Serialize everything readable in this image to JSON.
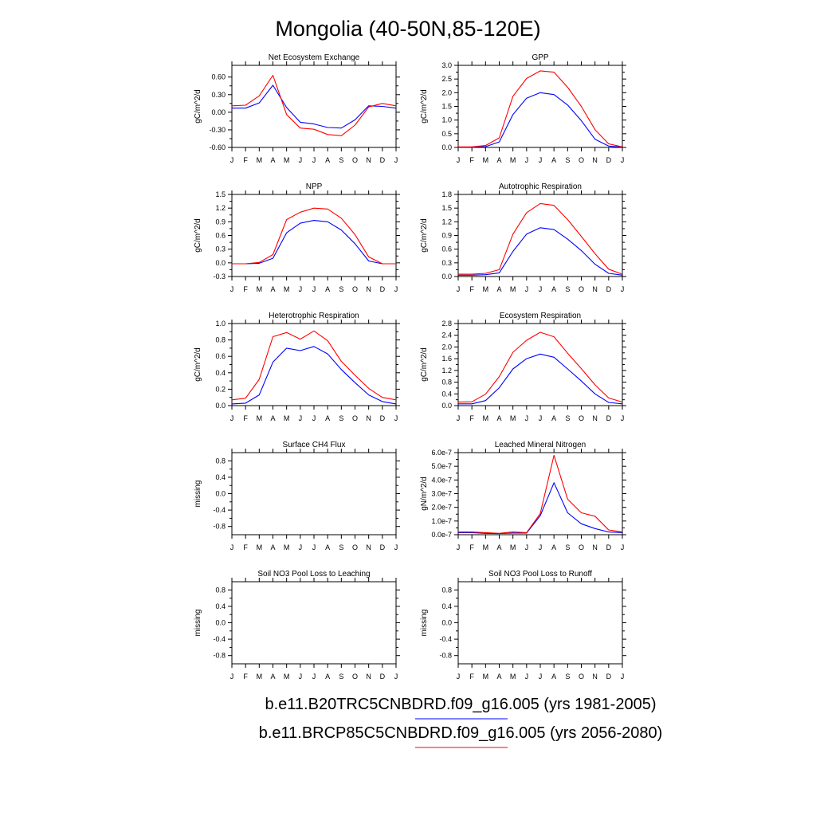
{
  "title": "Mongolia (40-50N,85-120E)",
  "colors": {
    "historical": "#0000ff",
    "future": "#ff0000"
  },
  "legend": [
    {
      "label": "b.e11.B20TRC5CNBDRD.f09_g16.005 (yrs 1981-2005)",
      "color": "#0000ff"
    },
    {
      "label": "b.e11.BRCP85C5CNBDRD.f09_g16.005 (yrs 2056-2080)",
      "color": "#ff0000"
    }
  ],
  "chart_data": [
    {
      "type": "line",
      "title": "Net Ecosystem Exchange",
      "ylabel": "gC/m^2/d",
      "categories": [
        "J",
        "F",
        "M",
        "A",
        "M",
        "J",
        "J",
        "A",
        "S",
        "O",
        "N",
        "D",
        "J"
      ],
      "ylim": [
        -0.6,
        0.8
      ],
      "yticks": [
        -0.6,
        -0.3,
        0.0,
        0.3,
        0.6
      ],
      "ytick_labels": [
        "-0.60",
        "-0.30",
        "0.00",
        "0.30",
        "0.60"
      ],
      "series": [
        {
          "name": "b.e11.B20TRC5CNBDRD.f09_g16.005 (yrs 1981-2005)",
          "color": "#0000ff",
          "values": [
            0.07,
            0.07,
            0.16,
            0.46,
            0.08,
            -0.17,
            -0.2,
            -0.26,
            -0.27,
            -0.13,
            0.11,
            0.1,
            0.07
          ]
        },
        {
          "name": "b.e11.BRCP85C5CNBDRD.f09_g16.005 (yrs 2056-2080)",
          "color": "#ff0000",
          "values": [
            0.11,
            0.12,
            0.28,
            0.63,
            -0.04,
            -0.27,
            -0.29,
            -0.38,
            -0.4,
            -0.22,
            0.09,
            0.15,
            0.11
          ]
        }
      ]
    },
    {
      "type": "line",
      "title": "GPP",
      "ylabel": "gC/m^2/d",
      "categories": [
        "J",
        "F",
        "M",
        "A",
        "M",
        "J",
        "J",
        "A",
        "S",
        "O",
        "N",
        "D",
        "J"
      ],
      "ylim": [
        0,
        3.0
      ],
      "yticks": [
        0,
        0.5,
        1.0,
        1.5,
        2.0,
        2.5,
        3.0
      ],
      "ytick_labels": [
        "0.0",
        "0.5",
        "1.0",
        "1.5",
        "2.0",
        "2.5",
        "3.0"
      ],
      "series": [
        {
          "name": "b.e11.B20TRC5CNBDRD.f09_g16.005 (yrs 1981-2005)",
          "color": "#0000ff",
          "values": [
            0.01,
            0.01,
            0.03,
            0.2,
            1.2,
            1.8,
            2.0,
            1.93,
            1.55,
            0.98,
            0.3,
            0.05,
            0.01
          ]
        },
        {
          "name": "b.e11.BRCP85C5CNBDRD.f09_g16.005 (yrs 2056-2080)",
          "color": "#ff0000",
          "values": [
            0.02,
            0.02,
            0.07,
            0.35,
            1.87,
            2.52,
            2.8,
            2.75,
            2.2,
            1.5,
            0.65,
            0.13,
            0.02
          ]
        }
      ]
    },
    {
      "type": "line",
      "title": "NPP",
      "ylabel": "gC/m^2/d",
      "categories": [
        "J",
        "F",
        "M",
        "A",
        "M",
        "J",
        "J",
        "A",
        "S",
        "O",
        "N",
        "D",
        "J"
      ],
      "ylim": [
        -0.3,
        1.5
      ],
      "yticks": [
        -0.3,
        0.0,
        0.3,
        0.6,
        0.9,
        1.2,
        1.5
      ],
      "ytick_labels": [
        "-0.3",
        "0.0",
        "0.3",
        "0.6",
        "0.9",
        "1.2",
        "1.5"
      ],
      "series": [
        {
          "name": "b.e11.B20TRC5CNBDRD.f09_g16.005 (yrs 1981-2005)",
          "color": "#0000ff",
          "values": [
            -0.02,
            -0.02,
            -0.01,
            0.1,
            0.66,
            0.87,
            0.93,
            0.9,
            0.72,
            0.42,
            0.04,
            -0.02,
            -0.02
          ]
        },
        {
          "name": "b.e11.BRCP85C5CNBDRD.f09_g16.005 (yrs 2056-2080)",
          "color": "#ff0000",
          "values": [
            -0.02,
            -0.02,
            0.01,
            0.18,
            0.95,
            1.11,
            1.2,
            1.18,
            0.98,
            0.62,
            0.13,
            -0.02,
            -0.02
          ]
        }
      ]
    },
    {
      "type": "line",
      "title": "Autotrophic Respiration",
      "ylabel": "gC/m^2/d",
      "categories": [
        "J",
        "F",
        "M",
        "A",
        "M",
        "J",
        "J",
        "A",
        "S",
        "O",
        "N",
        "D",
        "J"
      ],
      "ylim": [
        0,
        1.8
      ],
      "yticks": [
        0,
        0.3,
        0.6,
        0.9,
        1.2,
        1.5,
        1.8
      ],
      "ytick_labels": [
        "0.0",
        "0.3",
        "0.6",
        "0.9",
        "1.2",
        "1.5",
        "1.8"
      ],
      "series": [
        {
          "name": "b.e11.B20TRC5CNBDRD.f09_g16.005 (yrs 1981-2005)",
          "color": "#0000ff",
          "values": [
            0.03,
            0.03,
            0.04,
            0.08,
            0.55,
            0.93,
            1.07,
            1.03,
            0.82,
            0.57,
            0.27,
            0.07,
            0.03
          ]
        },
        {
          "name": "b.e11.BRCP85C5CNBDRD.f09_g16.005 (yrs 2056-2080)",
          "color": "#ff0000",
          "values": [
            0.05,
            0.05,
            0.07,
            0.15,
            0.93,
            1.4,
            1.6,
            1.56,
            1.25,
            0.88,
            0.5,
            0.16,
            0.05
          ]
        }
      ]
    },
    {
      "type": "line",
      "title": "Heterotrophic Respiration",
      "ylabel": "gC/m^2/d",
      "categories": [
        "J",
        "F",
        "M",
        "A",
        "M",
        "J",
        "J",
        "A",
        "S",
        "O",
        "N",
        "D",
        "J"
      ],
      "ylim": [
        0,
        1.0
      ],
      "yticks": [
        0,
        0.2,
        0.4,
        0.6,
        0.8,
        1.0
      ],
      "ytick_labels": [
        "0.0",
        "0.2",
        "0.4",
        "0.6",
        "0.8",
        "1.0"
      ],
      "series": [
        {
          "name": "b.e11.B20TRC5CNBDRD.f09_g16.005 (yrs 1981-2005)",
          "color": "#0000ff",
          "values": [
            0.02,
            0.03,
            0.13,
            0.53,
            0.7,
            0.67,
            0.72,
            0.63,
            0.44,
            0.28,
            0.13,
            0.05,
            0.02
          ]
        },
        {
          "name": "b.e11.BRCP85C5CNBDRD.f09_g16.005 (yrs 2056-2080)",
          "color": "#ff0000",
          "values": [
            0.07,
            0.09,
            0.32,
            0.84,
            0.89,
            0.81,
            0.91,
            0.79,
            0.54,
            0.37,
            0.21,
            0.1,
            0.07
          ]
        }
      ]
    },
    {
      "type": "line",
      "title": "Ecosystem Respiration",
      "ylabel": "gC/m^2/d",
      "categories": [
        "J",
        "F",
        "M",
        "A",
        "M",
        "J",
        "J",
        "A",
        "S",
        "O",
        "N",
        "D",
        "J"
      ],
      "ylim": [
        0,
        2.8
      ],
      "yticks": [
        0,
        0.4,
        0.8,
        1.2,
        1.6,
        2.0,
        2.4,
        2.8
      ],
      "ytick_labels": [
        "0.0",
        "0.4",
        "0.8",
        "1.2",
        "1.6",
        "2.0",
        "2.4",
        "2.8"
      ],
      "series": [
        {
          "name": "b.e11.B20TRC5CNBDRD.f09_g16.005 (yrs 1981-2005)",
          "color": "#0000ff",
          "values": [
            0.06,
            0.06,
            0.17,
            0.61,
            1.25,
            1.6,
            1.76,
            1.65,
            1.25,
            0.84,
            0.4,
            0.11,
            0.06
          ]
        },
        {
          "name": "b.e11.BRCP85C5CNBDRD.f09_g16.005 (yrs 2056-2080)",
          "color": "#ff0000",
          "values": [
            0.12,
            0.13,
            0.39,
            0.99,
            1.82,
            2.23,
            2.5,
            2.35,
            1.79,
            1.26,
            0.71,
            0.26,
            0.12
          ]
        }
      ]
    },
    {
      "type": "line",
      "title": "Surface CH4 Flux",
      "ylabel": "missing",
      "categories": [
        "J",
        "F",
        "M",
        "A",
        "M",
        "J",
        "J",
        "A",
        "S",
        "O",
        "N",
        "D",
        "J"
      ],
      "ylim": [
        -1.0,
        1.0
      ],
      "yticks": [
        -0.8,
        -0.4,
        0.0,
        0.4,
        0.8
      ],
      "ytick_labels": [
        "-0.8",
        "-0.4",
        "0.0",
        "0.4",
        "0.8"
      ],
      "series": []
    },
    {
      "type": "line",
      "title": "Leached Mineral Nitrogen",
      "ylabel": "gN/m^2/d",
      "categories": [
        "J",
        "F",
        "M",
        "A",
        "M",
        "J",
        "J",
        "A",
        "S",
        "O",
        "N",
        "D",
        "J"
      ],
      "ylim": [
        0,
        6e-07
      ],
      "yticks": [
        0,
        1e-07,
        2e-07,
        3e-07,
        4e-07,
        5e-07,
        6e-07
      ],
      "ytick_labels": [
        "0.0e-7",
        "1.0e-7",
        "2.0e-7",
        "3.0e-7",
        "4.0e-7",
        "5.0e-7",
        "6.0e-7"
      ],
      "series": [
        {
          "name": "b.e11.B20TRC5CNBDRD.f09_g16.005 (yrs 1981-2005)",
          "color": "#0000ff",
          "values": [
            1.5e-08,
            1.5e-08,
            1e-08,
            8e-09,
            1.2e-08,
            1.2e-08,
            1.4e-07,
            3.8e-07,
            1.6e-07,
            8e-08,
            4.5e-08,
            2e-08,
            1.5e-08
          ]
        },
        {
          "name": "b.e11.BRCP85C5CNBDRD.f09_g16.005 (yrs 2056-2080)",
          "color": "#ff0000",
          "values": [
            2e-08,
            2e-08,
            1.5e-08,
            1e-08,
            2e-08,
            1.5e-08,
            1.55e-07,
            5.8e-07,
            2.6e-07,
            1.6e-07,
            1.35e-07,
            3.5e-08,
            2e-08
          ]
        }
      ]
    },
    {
      "type": "line",
      "title": "Soil NO3 Pool Loss to Leaching",
      "ylabel": "missing",
      "categories": [
        "J",
        "F",
        "M",
        "A",
        "M",
        "J",
        "J",
        "A",
        "S",
        "O",
        "N",
        "D",
        "J"
      ],
      "ylim": [
        -1.0,
        1.0
      ],
      "yticks": [
        -0.8,
        -0.4,
        0.0,
        0.4,
        0.8
      ],
      "ytick_labels": [
        "-0.8",
        "-0.4",
        "0.0",
        "0.4",
        "0.8"
      ],
      "series": []
    },
    {
      "type": "line",
      "title": "Soil NO3 Pool Loss to Runoff",
      "ylabel": "missing",
      "categories": [
        "J",
        "F",
        "M",
        "A",
        "M",
        "J",
        "J",
        "A",
        "S",
        "O",
        "N",
        "D",
        "J"
      ],
      "ylim": [
        -1.0,
        1.0
      ],
      "yticks": [
        -0.8,
        -0.4,
        0.0,
        0.4,
        0.8
      ],
      "ytick_labels": [
        "-0.8",
        "-0.4",
        "0.0",
        "0.4",
        "0.8"
      ],
      "series": []
    }
  ]
}
